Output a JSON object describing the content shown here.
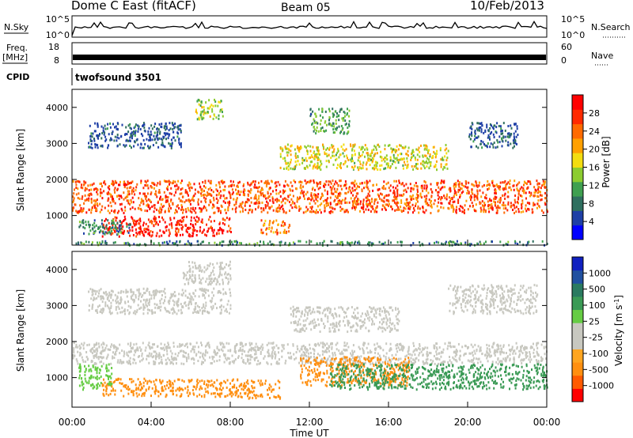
{
  "header": {
    "station": "Dome C East (fitACF)",
    "beam": "Beam 05",
    "date": "10/Feb/2013"
  },
  "top_panels": {
    "nsky_label": "N.Sky",
    "nsky_ticks": [
      "10^5",
      "10^0"
    ],
    "nsearch_label": "N.Search",
    "nsearch_ticks": [
      "10^5",
      "10^0"
    ],
    "freq_label": "Freq.",
    "freq_unit": "[MHz]",
    "freq_ticks": [
      "18",
      "8"
    ],
    "nave_label": "Nave",
    "nave_ticks": [
      "60",
      "0"
    ],
    "cpid_label": "CPID",
    "cpid_value": "twofsound 3501"
  },
  "x_axis": {
    "label": "Time UT",
    "ticks": [
      "00:00",
      "04:00",
      "08:00",
      "12:00",
      "16:00",
      "20:00",
      "00:00"
    ]
  },
  "chart_data": [
    {
      "type": "heatmap",
      "panel": "power",
      "xlabel": "Time UT",
      "ylabel": "Slant Range [km]",
      "x_range_hours": [
        0,
        24
      ],
      "ylim": [
        180,
        4500
      ],
      "y_ticks": [
        "4000",
        "3000",
        "2000",
        "1000"
      ],
      "colorbar": {
        "title": "Power [dB]",
        "ticks": [
          "28",
          "24",
          "20",
          "16",
          "12",
          "8",
          "4"
        ],
        "colors": [
          "#0000ff",
          "#1e3fa6",
          "#2f6f5f",
          "#3fa050",
          "#8ccc30",
          "#f3dd10",
          "#ffa000",
          "#ff6a00",
          "#ff2a00",
          "#ff0000"
        ]
      },
      "echo_regions": [
        {
          "t": [
            0.0,
            24.0
          ],
          "range": [
            1100,
            2000
          ],
          "value": 26
        },
        {
          "t": [
            1.5,
            8.0
          ],
          "range": [
            450,
            1000
          ],
          "value": 30
        },
        {
          "t": [
            9.5,
            11.0
          ],
          "range": [
            500,
            900
          ],
          "value": 24
        },
        {
          "t": [
            0.3,
            3.0
          ],
          "range": [
            500,
            900
          ],
          "value": 10
        },
        {
          "t": [
            6.2,
            7.6
          ],
          "range": [
            3700,
            4250
          ],
          "value": 16
        },
        {
          "t": [
            0.8,
            5.5
          ],
          "range": [
            2900,
            3600
          ],
          "value": 6
        },
        {
          "t": [
            10.5,
            19.0
          ],
          "range": [
            2300,
            3000
          ],
          "value": 18
        },
        {
          "t": [
            20.0,
            22.5
          ],
          "range": [
            2900,
            3600
          ],
          "value": 6
        },
        {
          "t": [
            12.0,
            14.0
          ],
          "range": [
            3300,
            4000
          ],
          "value": 12
        },
        {
          "t": [
            0.0,
            24.0
          ],
          "range": [
            200,
            320
          ],
          "value": 10
        }
      ]
    },
    {
      "type": "heatmap",
      "panel": "velocity",
      "xlabel": "Time UT",
      "ylabel": "Slant Range [km]",
      "x_range_hours": [
        0,
        24
      ],
      "ylim": [
        180,
        4500
      ],
      "y_ticks": [
        "4000",
        "3000",
        "2000",
        "1000"
      ],
      "colorbar": {
        "title": "Velocity [m s-1]",
        "ticks": [
          "1000",
          "500",
          "100",
          "25",
          "-25",
          "-100",
          "-500",
          "-1000"
        ],
        "colors": [
          "#ff0000",
          "#ff5a00",
          "#ff8f10",
          "#ffa520",
          "#c8c8c0",
          "#c8c8c0",
          "#66cc44",
          "#3a9a55",
          "#2a7a60",
          "#2050a0",
          "#1020c0"
        ]
      },
      "echo_regions": [
        {
          "t": [
            0.0,
            24.0
          ],
          "range": [
            1400,
            2000
          ],
          "value": 0
        },
        {
          "t": [
            1.5,
            8.5
          ],
          "range": [
            500,
            1000
          ],
          "value": -300
        },
        {
          "t": [
            8.5,
            10.5
          ],
          "range": [
            450,
            950
          ],
          "value": -200
        },
        {
          "t": [
            11.5,
            17.0
          ],
          "range": [
            800,
            1600
          ],
          "value": -200
        },
        {
          "t": [
            13.0,
            24.0
          ],
          "range": [
            700,
            1400
          ],
          "value": 300
        },
        {
          "t": [
            0.3,
            2.0
          ],
          "range": [
            700,
            1400
          ],
          "value": 150
        },
        {
          "t": [
            5.5,
            8.0
          ],
          "range": [
            3600,
            4250
          ],
          "value": 0
        },
        {
          "t": [
            0.8,
            8.0
          ],
          "range": [
            2800,
            3500
          ],
          "value": 0
        },
        {
          "t": [
            11.0,
            16.5
          ],
          "range": [
            2300,
            3000
          ],
          "value": 0
        },
        {
          "t": [
            19.0,
            23.5
          ],
          "range": [
            2800,
            3600
          ],
          "value": 0
        }
      ]
    }
  ]
}
